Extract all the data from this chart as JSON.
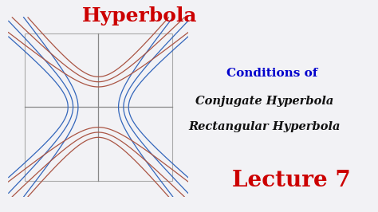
{
  "title": "Hyperbola",
  "title_color": "#cc0000",
  "title_fontsize": 18,
  "conditions_label": "Conditions of",
  "conditions_color": "#0000cc",
  "conditions_fontsize": 11,
  "subtitle1": "Conjugate Hyperbola",
  "subtitle2": "Rectangular Hyperbola",
  "subtitle_color": "#111111",
  "subtitle_fontsize": 10.5,
  "lecture_label": "Lecture 7",
  "lecture_color": "#cc0000",
  "lecture_fontsize": 20,
  "bg_color": "#f2f2f5",
  "hyperbola_blue_color": "#3366bb",
  "hyperbola_red_color": "#aa5544",
  "axis_color": "#888888",
  "box_color": "#aaaaaa",
  "a": 0.28,
  "b": 0.28,
  "offsets": [
    -0.07,
    0.0,
    0.07
  ],
  "plot_xlim": [
    -1.0,
    1.0
  ],
  "plot_ylim": [
    -1.0,
    1.0
  ]
}
